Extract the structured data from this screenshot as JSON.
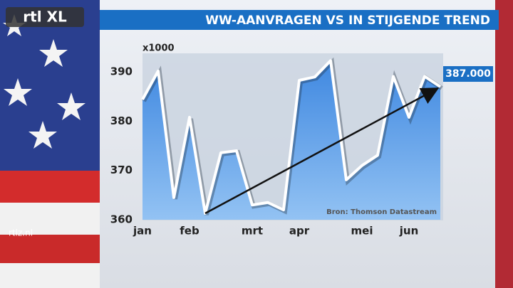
{
  "branding": {
    "logo": "rtl XL",
    "site": "rtlz.nl"
  },
  "chart_data": {
    "type": "line",
    "title": "WW-AANVRAGEN VS IN STIJGENDE TREND",
    "unit_label": "x1000",
    "source": "Bron: Thomson Datastream",
    "categories": [
      "jan",
      null,
      null,
      "feb",
      null,
      null,
      null,
      "mrt",
      null,
      null,
      "apr",
      null,
      null,
      null,
      "mei",
      null,
      null,
      "jun",
      null,
      null
    ],
    "series": [
      {
        "color": "#ffffff",
        "values": [
          384.4,
          390.2,
          364.5,
          380.8,
          361.3,
          373.6,
          374.0,
          363.0,
          363.5,
          362.0,
          388.3,
          389.0,
          392.3,
          368.1,
          371.0,
          373.1,
          389.1,
          380.8,
          389.1,
          387
        ],
        "value_labels": [
          null,
          null,
          null,
          null,
          null,
          null,
          null,
          null,
          null,
          null,
          null,
          null,
          null,
          null,
          null,
          null,
          null,
          null,
          null,
          "387.000"
        ]
      }
    ],
    "trend": {
      "x": [
        4,
        19
      ],
      "values": [
        361.3,
        386.5
      ],
      "color": "#111111"
    },
    "ylim": [
      360,
      393.5
    ],
    "yticks": [
      360,
      370,
      380,
      390
    ],
    "grid": false
  }
}
